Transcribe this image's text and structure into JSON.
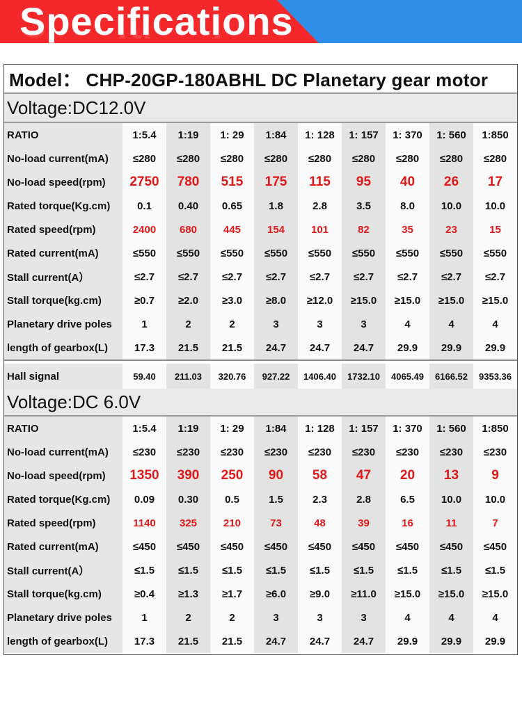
{
  "banner": {
    "title": "Specifications"
  },
  "model": "Model：  CHP-20GP-180ABHL  DC Planetary gear motor",
  "sections": [
    {
      "voltage": "Voltage:DC12.0V",
      "rows": [
        {
          "label": "RATIO",
          "values": [
            "1:5.4",
            "1:19",
            "1: 29",
            "1:84",
            "1: 128",
            "1: 157",
            "1: 370",
            "1: 560",
            "1:850"
          ]
        },
        {
          "label": "No-load current(mA)",
          "values": [
            "≤280",
            "≤280",
            "≤280",
            "≤280",
            "≤280",
            "≤280",
            "≤280",
            "≤280",
            "≤280"
          ]
        },
        {
          "label": "No-load speed(rpm)",
          "values": [
            "2750",
            "780",
            "515",
            "175",
            "115",
            "95",
            "40",
            "26",
            "17"
          ]
        },
        {
          "label": "Rated torque(Kg.cm)",
          "values": [
            "0.1",
            "0.40",
            "0.65",
            "1.8",
            "2.8",
            "3.5",
            "8.0",
            "10.0",
            "10.0"
          ]
        },
        {
          "label": "Rated speed(rpm)",
          "values": [
            "2400",
            "680",
            "445",
            "154",
            "101",
            "82",
            "35",
            "23",
            "15"
          ]
        },
        {
          "label": "Rated current(mA)",
          "values": [
            "≤550",
            "≤550",
            "≤550",
            "≤550",
            "≤550",
            "≤550",
            "≤550",
            "≤550",
            "≤550"
          ]
        },
        {
          "label": "Stall current(A）",
          "values": [
            "≤2.7",
            "≤2.7",
            "≤2.7",
            "≤2.7",
            "≤2.7",
            "≤2.7",
            "≤2.7",
            "≤2.7",
            "≤2.7"
          ]
        },
        {
          "label": "Stall torque(kg.cm)",
          "values": [
            "≥0.7",
            "≥2.0",
            "≥3.0",
            "≥8.0",
            "≥12.0",
            "≥15.0",
            "≥15.0",
            "≥15.0",
            "≥15.0"
          ]
        },
        {
          "label": "Planetary drive poles",
          "values": [
            "1",
            "2",
            "2",
            "3",
            "3",
            "3",
            "4",
            "4",
            "4"
          ]
        },
        {
          "label": "length of gearbox(L)",
          "values": [
            "17.3",
            "21.5",
            "21.5",
            "24.7",
            "24.7",
            "24.7",
            "29.9",
            "29.9",
            "29.9"
          ]
        }
      ],
      "hall": {
        "label": "Hall signal",
        "values": [
          "59.40",
          "211.03",
          "320.76",
          "927.22",
          "1406.40",
          "1732.10",
          "4065.49",
          "6166.52",
          "9353.36"
        ]
      }
    },
    {
      "voltage": "Voltage:DC 6.0V",
      "rows": [
        {
          "label": "RATIO",
          "values": [
            "1:5.4",
            "1:19",
            "1: 29",
            "1:84",
            "1: 128",
            "1: 157",
            "1: 370",
            "1: 560",
            "1:850"
          ]
        },
        {
          "label": "No-load current(mA)",
          "values": [
            "≤230",
            "≤230",
            "≤230",
            "≤230",
            "≤230",
            "≤230",
            "≤230",
            "≤230",
            "≤230"
          ]
        },
        {
          "label": "No-load speed(rpm)",
          "values": [
            "1350",
            "390",
            "250",
            "90",
            "58",
            "47",
            "20",
            "13",
            "9"
          ]
        },
        {
          "label": "Rated torque(Kg.cm)",
          "values": [
            "0.09",
            "0.30",
            "0.5",
            "1.5",
            "2.3",
            "2.8",
            "6.5",
            "10.0",
            "10.0"
          ]
        },
        {
          "label": "Rated speed(rpm)",
          "values": [
            "1140",
            "325",
            "210",
            "73",
            "48",
            "39",
            "16",
            "11",
            "7"
          ]
        },
        {
          "label": "Rated current(mA)",
          "values": [
            "≤450",
            "≤450",
            "≤450",
            "≤450",
            "≤450",
            "≤450",
            "≤450",
            "≤450",
            "≤450"
          ]
        },
        {
          "label": "Stall current(A）",
          "values": [
            "≤1.5",
            "≤1.5",
            "≤1.5",
            "≤1.5",
            "≤1.5",
            "≤1.5",
            "≤1.5",
            "≤1.5",
            "≤1.5"
          ]
        },
        {
          "label": "Stall torque(kg.cm)",
          "values": [
            "≥0.4",
            "≥1.3",
            "≥1.7",
            "≥6.0",
            "≥9.0",
            "≥11.0",
            "≥15.0",
            "≥15.0",
            "≥15.0"
          ]
        },
        {
          "label": "Planetary drive poles",
          "values": [
            "1",
            "2",
            "2",
            "3",
            "3",
            "3",
            "4",
            "4",
            "4"
          ]
        },
        {
          "label": "length of gearbox(L)",
          "values": [
            "17.3",
            "21.5",
            "21.5",
            "24.7",
            "24.7",
            "24.7",
            "29.9",
            "29.9",
            "29.9"
          ]
        }
      ]
    }
  ],
  "colors": {
    "banner_red": "#f4282b",
    "banner_blue": "#2f8ee6",
    "highlight_red": "#e01818"
  }
}
